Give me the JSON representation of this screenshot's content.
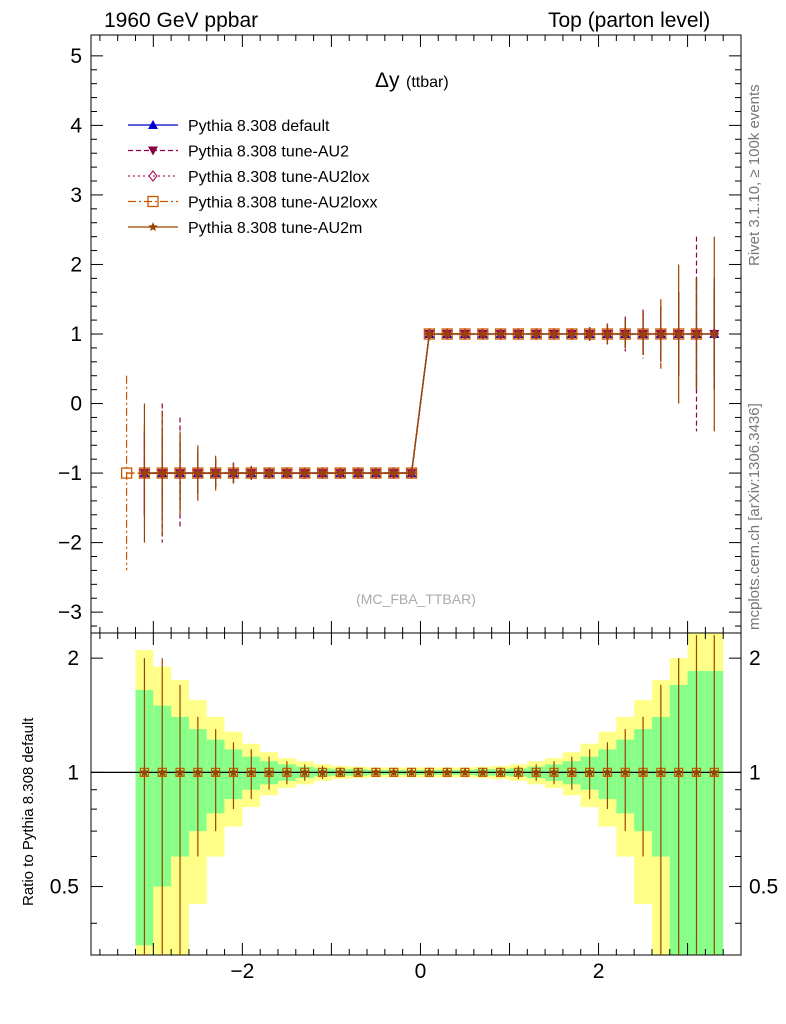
{
  "header": {
    "left": "1960 GeV ppbar",
    "right": "Top (parton level)"
  },
  "side_labels": {
    "rivet": "Rivet 3.1.10, ≥ 100k events",
    "mcplots": "mcplots.cern.ch [arXiv:1306.3436]"
  },
  "chart_data": {
    "type": "line",
    "title": "Δy",
    "title_sub": "(ttbar)",
    "watermark": "(MC_FBA_TTBAR)",
    "xlim": [
      -3.7,
      3.6
    ],
    "xticks": [
      -2,
      0,
      2
    ],
    "xticklabels": [
      "−2",
      "0",
      "2"
    ],
    "main": {
      "ylim": [
        -3.3,
        5.3
      ],
      "yticks": [
        -3,
        -2,
        -1,
        0,
        1,
        2,
        3,
        4,
        5
      ],
      "yticklabels": [
        "−3",
        "−2",
        "−1",
        "0",
        "1",
        "2",
        "3",
        "4",
        "5"
      ],
      "legend_position": "top-left",
      "series": [
        {
          "name": "Pythia 8.308 default",
          "color": "#0000cc",
          "marker": "triangle-up",
          "dash": "",
          "x": [
            -3.1,
            -2.9,
            -2.7,
            -2.5,
            -2.3,
            -2.1,
            -1.9,
            -1.7,
            -1.5,
            -1.3,
            -1.1,
            -0.9,
            -0.7,
            -0.5,
            -0.3,
            -0.1,
            0.1,
            0.3,
            0.5,
            0.7,
            0.9,
            1.1,
            1.3,
            1.5,
            1.7,
            1.9,
            2.1,
            2.3,
            2.5,
            2.7,
            2.9,
            3.1,
            3.3
          ],
          "y": [
            -1,
            -1,
            -1,
            -1,
            -1,
            -1,
            -1,
            -1,
            -1,
            -1,
            -1,
            -1,
            -1,
            -1,
            -1,
            -1,
            1,
            1,
            1,
            1,
            1,
            1,
            1,
            1,
            1,
            1,
            1,
            1,
            1,
            1,
            1,
            1,
            1
          ],
          "err": [
            0.6,
            0.5,
            0.4,
            0.3,
            0.2,
            0.15,
            0.1,
            0.07,
            0.05,
            0.04,
            0.03,
            0.02,
            0.02,
            0.02,
            0.02,
            0.02,
            0.02,
            0.02,
            0.02,
            0.02,
            0.02,
            0.03,
            0.04,
            0.05,
            0.07,
            0.1,
            0.15,
            0.2,
            0.3,
            0.4,
            0.6,
            0.8,
            0.8
          ]
        },
        {
          "name": "Pythia 8.308 tune-AU2",
          "color": "#880044",
          "marker": "triangle-down",
          "dash": "5,3",
          "x": [
            -3.1,
            -2.9,
            -2.7,
            -2.5,
            -2.3,
            -2.1,
            -1.9,
            -1.7,
            -1.5,
            -1.3,
            -1.1,
            -0.9,
            -0.7,
            -0.5,
            -0.3,
            -0.1,
            0.1,
            0.3,
            0.5,
            0.7,
            0.9,
            1.1,
            1.3,
            1.5,
            1.7,
            1.9,
            2.1,
            2.3,
            2.5,
            2.7,
            2.9,
            3.1,
            3.3
          ],
          "y": [
            -1,
            -1,
            -1,
            -1,
            -1,
            -1,
            -1,
            -1,
            -1,
            -1,
            -1,
            -1,
            -1,
            -1,
            -1,
            -1,
            1,
            1,
            1,
            1,
            1,
            1,
            1,
            1,
            1,
            1,
            1,
            1,
            1,
            1,
            1,
            1,
            1
          ],
          "err": [
            0.6,
            1.0,
            0.8,
            0.35,
            0.2,
            0.15,
            0.1,
            0.07,
            0.05,
            0.04,
            0.03,
            0.02,
            0.02,
            0.02,
            0.02,
            0.02,
            0.02,
            0.02,
            0.02,
            0.02,
            0.02,
            0.03,
            0.04,
            0.05,
            0.07,
            0.1,
            0.15,
            0.25,
            0.35,
            0.5,
            0.6,
            1.4,
            0.6
          ]
        },
        {
          "name": "Pythia 8.308 tune-AU2lox",
          "color": "#aa2266",
          "marker": "diamond-open",
          "dash": "2,3",
          "x": [
            -3.1,
            -2.9,
            -2.7,
            -2.5,
            -2.3,
            -2.1,
            -1.9,
            -1.7,
            -1.5,
            -1.3,
            -1.1,
            -0.9,
            -0.7,
            -0.5,
            -0.3,
            -0.1,
            0.1,
            0.3,
            0.5,
            0.7,
            0.9,
            1.1,
            1.3,
            1.5,
            1.7,
            1.9,
            2.1,
            2.3,
            2.5,
            2.7,
            2.9,
            3.1,
            3.3
          ],
          "y": [
            -1,
            -1,
            -1,
            -1,
            -1,
            -1,
            -1,
            -1,
            -1,
            -1,
            -1,
            -1,
            -1,
            -1,
            -1,
            -1,
            1,
            1,
            1,
            1,
            1,
            1,
            1,
            1,
            1,
            1,
            1,
            1,
            1,
            1,
            1,
            1,
            1
          ],
          "err": [
            0.6,
            0.55,
            0.45,
            0.3,
            0.2,
            0.15,
            0.1,
            0.07,
            0.05,
            0.04,
            0.03,
            0.02,
            0.02,
            0.02,
            0.02,
            0.02,
            0.02,
            0.02,
            0.02,
            0.02,
            0.02,
            0.03,
            0.04,
            0.05,
            0.07,
            0.1,
            0.15,
            0.2,
            0.3,
            0.45,
            0.6,
            0.8,
            0.8
          ]
        },
        {
          "name": "Pythia 8.308 tune-AU2loxx",
          "color": "#cc5500",
          "marker": "square-open",
          "dash": "8,3,2,3",
          "x": [
            -3.3,
            -3.1,
            -2.9,
            -2.7,
            -2.5,
            -2.3,
            -2.1,
            -1.9,
            -1.7,
            -1.5,
            -1.3,
            -1.1,
            -0.9,
            -0.7,
            -0.5,
            -0.3,
            -0.1,
            0.1,
            0.3,
            0.5,
            0.7,
            0.9,
            1.1,
            1.3,
            1.5,
            1.7,
            1.9,
            2.1,
            2.3,
            2.5,
            2.7,
            2.9,
            3.1
          ],
          "y": [
            -1,
            -1,
            -1,
            -1,
            -1,
            -1,
            -1,
            -1,
            -1,
            -1,
            -1,
            -1,
            -1,
            -1,
            -1,
            -1,
            -1,
            1,
            1,
            1,
            1,
            1,
            1,
            1,
            1,
            1,
            1,
            1,
            1,
            1,
            1,
            1,
            1
          ],
          "err": [
            1.4,
            0.7,
            0.6,
            0.5,
            0.3,
            0.2,
            0.15,
            0.1,
            0.07,
            0.05,
            0.04,
            0.03,
            0.02,
            0.02,
            0.02,
            0.02,
            0.02,
            0.02,
            0.02,
            0.02,
            0.02,
            0.02,
            0.03,
            0.04,
            0.05,
            0.07,
            0.1,
            0.15,
            0.2,
            0.3,
            0.5,
            0.6,
            0.8
          ]
        },
        {
          "name": "Pythia 8.308 tune-AU2m",
          "color": "#994400",
          "marker": "star",
          "dash": "",
          "x": [
            -3.1,
            -2.9,
            -2.7,
            -2.5,
            -2.3,
            -2.1,
            -1.9,
            -1.7,
            -1.5,
            -1.3,
            -1.1,
            -0.9,
            -0.7,
            -0.5,
            -0.3,
            -0.1,
            0.1,
            0.3,
            0.5,
            0.7,
            0.9,
            1.1,
            1.3,
            1.5,
            1.7,
            1.9,
            2.1,
            2.3,
            2.5,
            2.7,
            2.9,
            3.1,
            3.3
          ],
          "y": [
            -1,
            -1,
            -1,
            -1,
            -1,
            -1,
            -1,
            -1,
            -1,
            -1,
            -1,
            -1,
            -1,
            -1,
            -1,
            -1,
            1,
            1,
            1,
            1,
            1,
            1,
            1,
            1,
            1,
            1,
            1,
            1,
            1,
            1,
            1,
            1,
            1
          ],
          "err": [
            1.0,
            0.9,
            0.6,
            0.4,
            0.25,
            0.15,
            0.1,
            0.07,
            0.05,
            0.04,
            0.03,
            0.02,
            0.02,
            0.02,
            0.02,
            0.02,
            0.02,
            0.02,
            0.02,
            0.02,
            0.02,
            0.03,
            0.04,
            0.05,
            0.07,
            0.1,
            0.15,
            0.2,
            0.3,
            0.4,
            1.0,
            0.8,
            1.4
          ]
        }
      ]
    },
    "ratio": {
      "ylabel": "Ratio to Pythia 8.308 default",
      "ylim": [
        0.33,
        2.33
      ],
      "yticks": [
        0.5,
        1,
        2
      ],
      "yticklabels": [
        "0.5",
        "1",
        "2"
      ],
      "reference": 1,
      "x": [
        -3.1,
        -2.9,
        -2.7,
        -2.5,
        -2.3,
        -2.1,
        -1.9,
        -1.7,
        -1.5,
        -1.3,
        -1.1,
        -0.9,
        -0.7,
        -0.5,
        -0.3,
        -0.1,
        0.1,
        0.3,
        0.5,
        0.7,
        0.9,
        1.1,
        1.3,
        1.5,
        1.7,
        1.9,
        2.1,
        2.3,
        2.5,
        2.7,
        2.9,
        3.1,
        3.3
      ],
      "band_green": [
        0.65,
        0.5,
        0.4,
        0.3,
        0.22,
        0.15,
        0.1,
        0.07,
        0.05,
        0.035,
        0.025,
        0.02,
        0.02,
        0.015,
        0.015,
        0.015,
        0.015,
        0.015,
        0.015,
        0.02,
        0.02,
        0.025,
        0.035,
        0.05,
        0.07,
        0.1,
        0.15,
        0.22,
        0.3,
        0.4,
        0.7,
        0.85,
        0.85
      ],
      "band_yellow": [
        1.1,
        0.9,
        0.75,
        0.55,
        0.4,
        0.28,
        0.19,
        0.13,
        0.09,
        0.07,
        0.05,
        0.04,
        0.035,
        0.03,
        0.03,
        0.03,
        0.03,
        0.03,
        0.03,
        0.035,
        0.04,
        0.05,
        0.07,
        0.09,
        0.13,
        0.19,
        0.28,
        0.4,
        0.55,
        0.75,
        1.0,
        1.5,
        1.5
      ],
      "points_err": [
        1.0,
        1.0,
        0.7,
        0.4,
        0.3,
        0.2,
        0.15,
        0.1,
        0.07,
        0.05,
        0.04,
        0.03,
        0.02,
        0.02,
        0.02,
        0.02,
        0.02,
        0.02,
        0.02,
        0.02,
        0.03,
        0.04,
        0.05,
        0.07,
        0.1,
        0.15,
        0.2,
        0.3,
        0.4,
        0.7,
        1.0,
        1.3,
        1.3
      ]
    }
  }
}
